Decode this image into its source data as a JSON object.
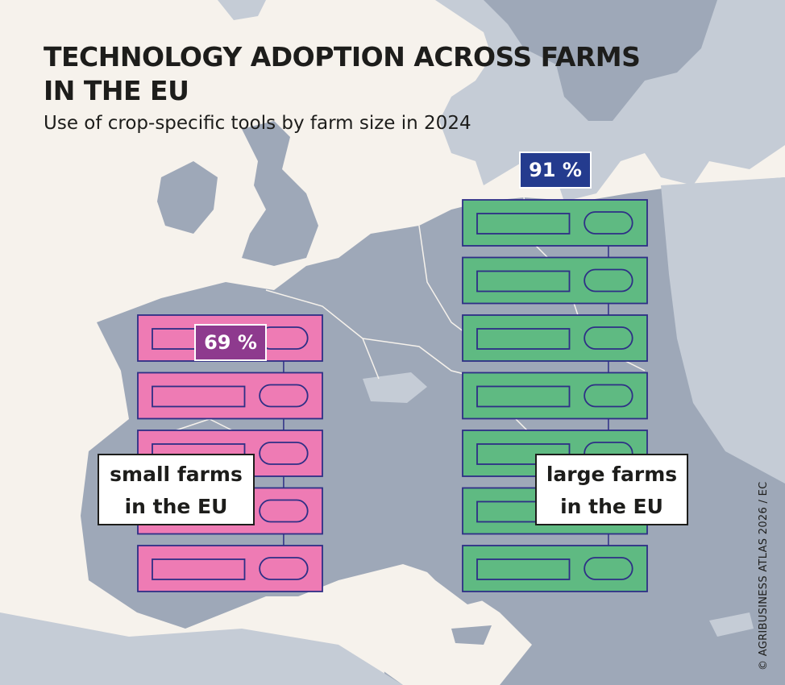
{
  "title": "TECHNOLOGY ADOPTION ACROSS FARMS IN THE EU",
  "subtitle": "Use of crop-specific tools by farm size in 2024",
  "credit": "© AGRIBUSINESS ATLAS 2026 / EC",
  "colors": {
    "small": "#ee7bb4",
    "small_badge": "#8e3a8e",
    "large": "#5fba82",
    "large_badge": "#243b8e",
    "outline": "#2e2f86",
    "map_land": "#c5ccd6",
    "map_highlight": "#9ea8b8",
    "sea": "#f6f2ec"
  },
  "chart_data": {
    "type": "bar",
    "title": "TECHNOLOGY ADOPTION ACROSS FARMS IN THE EU",
    "subtitle": "Use of crop-specific tools by farm size in 2024",
    "categories": [
      "small farms in the EU",
      "large farms in the EU"
    ],
    "values": [
      69,
      91
    ],
    "unit": "%",
    "value_labels": [
      "69 %",
      "91 %"
    ],
    "series": [
      {
        "name": "small farms in the EU",
        "label_line1": "small farms",
        "label_line2": "in the EU",
        "value": 69,
        "value_label": "69 %",
        "color": "#ee7bb4",
        "badge_color": "#8e3a8e"
      },
      {
        "name": "large farms in the EU",
        "label_line1": "large farms",
        "label_line2": "in the EU",
        "value": 91,
        "value_label": "91 %",
        "color": "#5fba82",
        "badge_color": "#243b8e"
      }
    ],
    "encoding": "stacked server-rack units; rack height proportional to value"
  }
}
